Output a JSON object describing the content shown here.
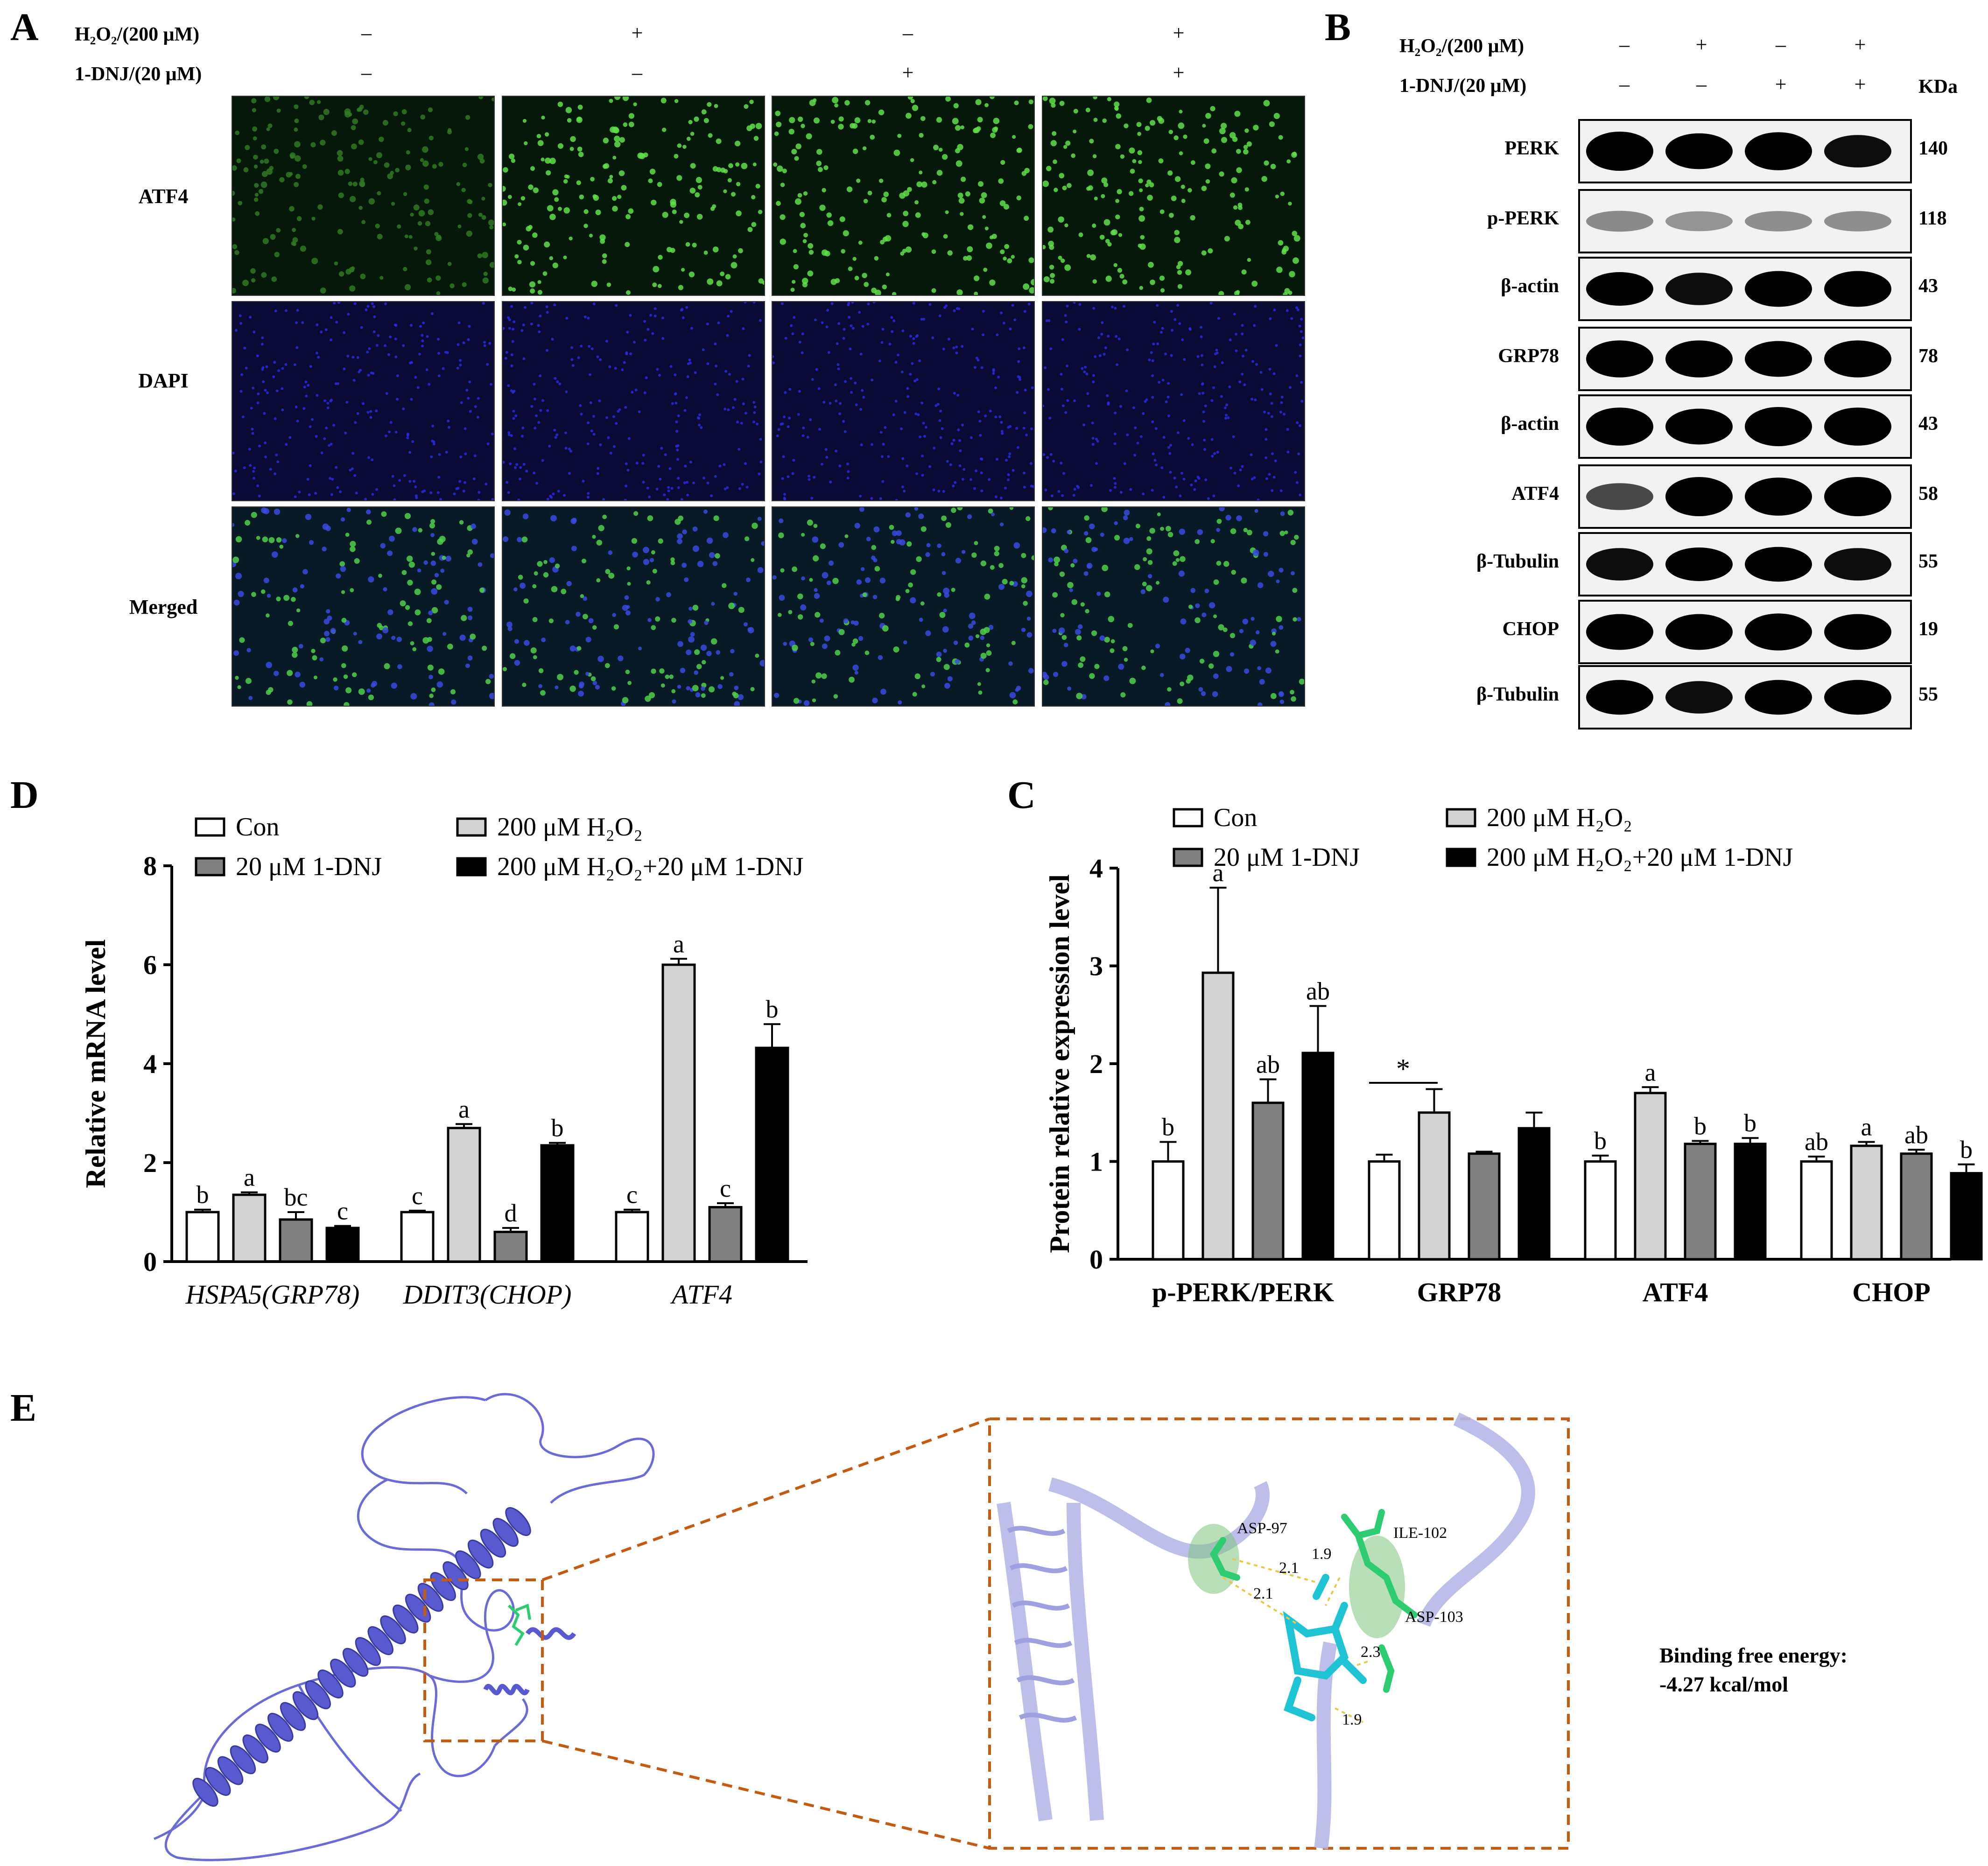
{
  "panels": {
    "a": "A",
    "b": "B",
    "c": "C",
    "d": "D",
    "e": "E"
  },
  "conditions": {
    "h2o2_label": "H₂O₂/(200 μM)",
    "dnj_label": "1-DNJ/(20 μM)",
    "h2o2_signs": [
      "–",
      "+",
      "–",
      "+"
    ],
    "dnj_signs": [
      "–",
      "–",
      "+",
      "+"
    ],
    "kda_label": "KDa"
  },
  "panel_a": {
    "rows": [
      "ATF4",
      "DAPI",
      "Merged"
    ]
  },
  "panel_b": {
    "blots": [
      {
        "name": "PERK",
        "kda": "140"
      },
      {
        "name": "p-PERK",
        "kda": "118"
      },
      {
        "name": "β-actin",
        "kda": "43"
      },
      {
        "name": "GRP78",
        "kda": "78"
      },
      {
        "name": "β-actin",
        "kda": "43"
      },
      {
        "name": "ATF4",
        "kda": "58"
      },
      {
        "name": "β-Tubulin",
        "kda": "55"
      },
      {
        "name": "CHOP",
        "kda": "19"
      },
      {
        "name": "β-Tubulin",
        "kda": "55"
      }
    ]
  },
  "colors": {
    "con": "#ffffff",
    "h2o2": "#d3d3d3",
    "dnj": "#808080",
    "combo": "#000000",
    "dashed": "#c55a11",
    "green": "#6fd24a",
    "blue": "#1a1ab0",
    "ribbon": "#6b6bd8"
  },
  "chart_data": [
    {
      "id": "D",
      "type": "bar",
      "ylabel": "Relative mRNA level",
      "ylim": [
        0,
        8
      ],
      "yticks": [
        "0",
        "2",
        "4",
        "6",
        "8"
      ],
      "categories": [
        "HSPA5(GRP78)",
        "DDIT3(CHOP)",
        "ATF4"
      ],
      "legend": [
        "Con",
        "200 μM H₂O₂",
        "20 μM 1-DNJ",
        "200 μM H₂O₂+20 μM 1-DNJ"
      ],
      "series": [
        {
          "name": "Con",
          "values": [
            1.0,
            1.0,
            1.0
          ],
          "errors": [
            0.05,
            0.03,
            0.05
          ],
          "letters": [
            "b",
            "c",
            "c"
          ]
        },
        {
          "name": "200 μM H₂O₂",
          "values": [
            1.35,
            2.7,
            6.0
          ],
          "errors": [
            0.05,
            0.08,
            0.12
          ],
          "letters": [
            "a",
            "a",
            "a"
          ]
        },
        {
          "name": "20 μM 1-DNJ",
          "values": [
            0.85,
            0.6,
            1.1
          ],
          "errors": [
            0.15,
            0.08,
            0.08
          ],
          "letters": [
            "bc",
            "d",
            "c"
          ]
        },
        {
          "name": "200 μM H₂O₂+20 μM 1-DNJ",
          "values": [
            0.68,
            2.35,
            4.32
          ],
          "errors": [
            0.04,
            0.05,
            0.48
          ],
          "letters": [
            "c",
            "b",
            "b"
          ]
        }
      ]
    },
    {
      "id": "C",
      "type": "bar",
      "ylabel": "Protein relative expression level",
      "ylim": [
        0,
        4
      ],
      "yticks": [
        "0",
        "1",
        "2",
        "3",
        "4"
      ],
      "categories": [
        "p-PERK/PERK",
        "GRP78",
        "ATF4",
        "CHOP"
      ],
      "legend": [
        "Con",
        "200 μM H₂O₂",
        "20 μM 1-DNJ",
        "200 μM H₂O₂+20 μM 1-DNJ"
      ],
      "series": [
        {
          "name": "Con",
          "values": [
            1.0,
            1.0,
            1.0,
            1.0
          ],
          "errors": [
            0.2,
            0.07,
            0.06,
            0.05
          ],
          "letters": [
            "b",
            "",
            "b",
            "ab"
          ]
        },
        {
          "name": "200 μM H₂O₂",
          "values": [
            2.93,
            1.5,
            1.7,
            1.16
          ],
          "errors": [
            0.87,
            0.24,
            0.06,
            0.04
          ],
          "letters": [
            "a",
            "",
            "a",
            "a"
          ]
        },
        {
          "name": "20 μM 1-DNJ",
          "values": [
            1.6,
            1.08,
            1.18,
            1.08
          ],
          "errors": [
            0.24,
            0.02,
            0.03,
            0.04
          ],
          "letters": [
            "ab",
            "",
            "b",
            "ab"
          ]
        },
        {
          "name": "200 μM H₂O₂+20 μM 1-DNJ",
          "values": [
            2.11,
            1.34,
            1.18,
            0.88
          ],
          "errors": [
            0.48,
            0.16,
            0.06,
            0.09
          ],
          "letters": [
            "ab",
            "",
            "b",
            "b"
          ]
        }
      ],
      "annotations": [
        {
          "text": "*",
          "category": "GRP78"
        }
      ]
    }
  ],
  "panel_e": {
    "residues": [
      "ASP-97",
      "ILE-102",
      "ASP-103"
    ],
    "distances": [
      "2.1",
      "1.9",
      "2.1",
      "2.3",
      "1.9"
    ],
    "energy_title": "Binding free energy:",
    "energy_value": "-4.27 kcal/mol"
  }
}
